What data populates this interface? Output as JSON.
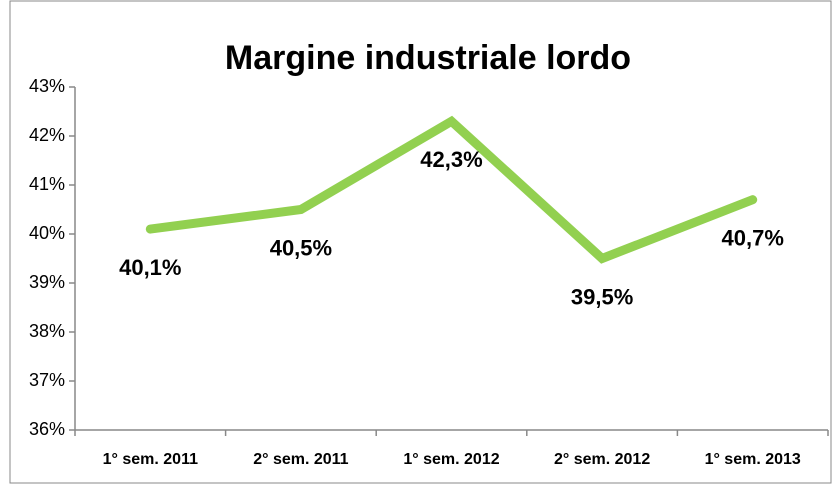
{
  "chart_data": {
    "type": "line",
    "title": "Margine industriale lordo",
    "categories": [
      "1° sem. 2011",
      "2° sem. 2011",
      "1° sem. 2012",
      "2° sem. 2012",
      "1° sem. 2013"
    ],
    "series": [
      {
        "name": "Margine industriale lordo",
        "color": "#92d050",
        "values": [
          40.1,
          40.5,
          42.3,
          39.5,
          40.7
        ],
        "value_labels": [
          "40,1%",
          "40,5%",
          "42,3%",
          "39,5%",
          "40,7%"
        ]
      }
    ],
    "ylim": [
      36,
      43
    ],
    "yticks": [
      {
        "value": 36,
        "label": "36%"
      },
      {
        "value": 37,
        "label": "37%"
      },
      {
        "value": 38,
        "label": "38%"
      },
      {
        "value": 39,
        "label": "39%"
      },
      {
        "value": 40,
        "label": "40%"
      },
      {
        "value": 41,
        "label": "41%"
      },
      {
        "value": 42,
        "label": "42%"
      },
      {
        "value": 43,
        "label": "43%"
      }
    ],
    "grid": false
  }
}
